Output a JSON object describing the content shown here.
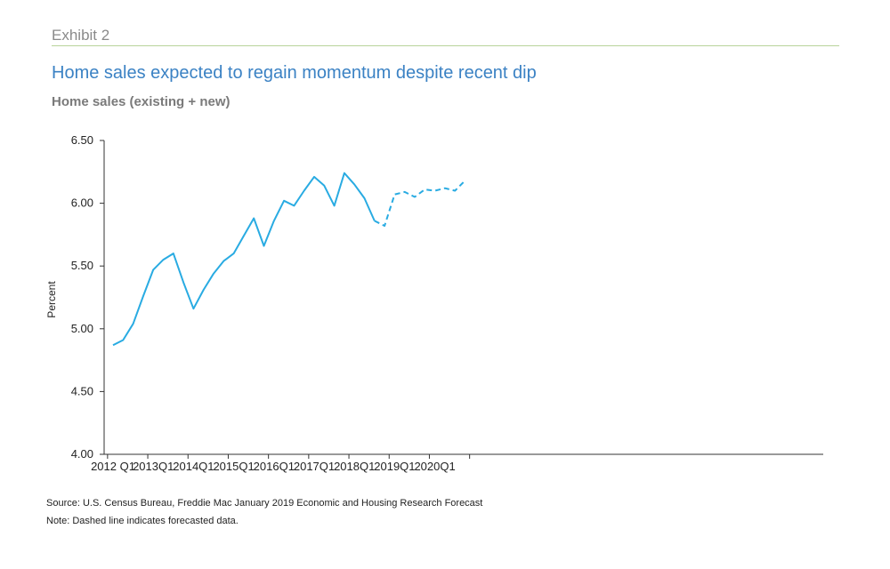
{
  "exhibit_label": "Exhibit 2",
  "source": "Source: U.S. Census Bureau, Freddie Mac January 2019 Economic and Housing Research Forecast",
  "note": "Note: Dashed line indicates forecasted data.",
  "colors": {
    "line": "#29abe2",
    "title": "#3b82c4",
    "rule": "#b9d39a"
  },
  "chart_data": {
    "type": "line",
    "title": "Home sales expected to regain momentum despite recent dip",
    "subtitle": "Home sales (existing + new)",
    "ylabel": "Percent",
    "xlabel": "",
    "ylim": [
      4.0,
      6.5
    ],
    "y_ticks": [
      "4.00",
      "4.50",
      "5.00",
      "5.50",
      "6.00",
      "6.50"
    ],
    "x_tick_labels": [
      "2012 Q1",
      "2013Q1",
      "2014Q1",
      "2015Q1",
      "2016Q1",
      "2017Q1",
      "2018Q1",
      "2019Q1",
      "2020Q1"
    ],
    "grid": false,
    "series": [
      {
        "style": "solid",
        "x": [
          "2012Q1",
          "2012Q2",
          "2012Q3",
          "2012Q4",
          "2013Q1",
          "2013Q2",
          "2013Q3",
          "2013Q4",
          "2014Q1",
          "2014Q2",
          "2014Q3",
          "2014Q4",
          "2015Q1",
          "2015Q2",
          "2015Q3",
          "2015Q4",
          "2016Q1",
          "2016Q2",
          "2016Q3",
          "2016Q4",
          "2017Q1",
          "2017Q2",
          "2017Q3",
          "2017Q4",
          "2018Q1",
          "2018Q2",
          "2018Q3"
        ],
        "values": [
          4.87,
          4.91,
          5.04,
          5.26,
          5.47,
          5.55,
          5.6,
          5.37,
          5.16,
          5.31,
          5.44,
          5.54,
          5.6,
          5.74,
          5.88,
          5.66,
          5.86,
          6.02,
          5.98,
          6.1,
          6.21,
          6.14,
          5.98,
          6.24,
          6.15,
          6.04,
          5.86
        ]
      },
      {
        "style": "dashed",
        "x": [
          "2018Q3",
          "2018Q4",
          "2019Q1",
          "2019Q2",
          "2019Q3",
          "2019Q4",
          "2020Q1",
          "2020Q2",
          "2020Q3",
          "2020Q4"
        ],
        "values": [
          5.86,
          5.82,
          6.07,
          6.09,
          6.05,
          6.11,
          6.1,
          6.12,
          6.1,
          6.18
        ]
      }
    ]
  }
}
